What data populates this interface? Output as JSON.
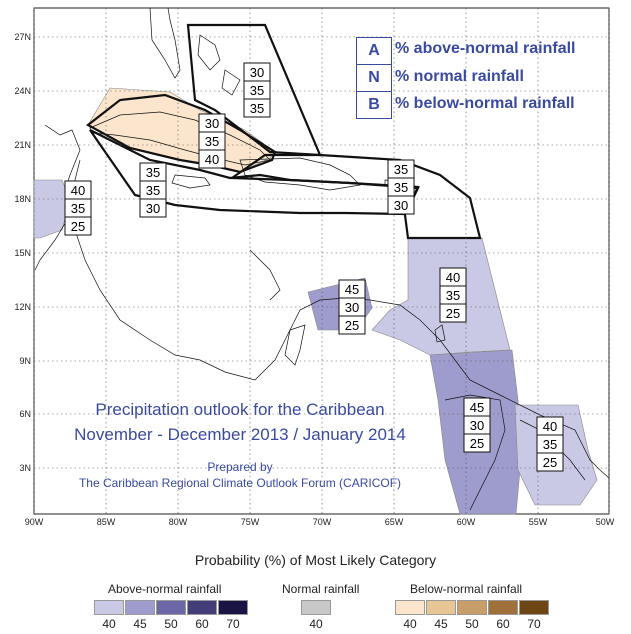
{
  "legend": [
    {
      "letter": "A",
      "label": "% above-normal rainfall"
    },
    {
      "letter": "N",
      "label": "% normal rainfall"
    },
    {
      "letter": "B",
      "label": "% below-normal rainfall"
    }
  ],
  "title_line1": "Precipitation outlook for the Caribbean",
  "title_line2": "November - December 2013 / January 2014",
  "prepared_by": "Prepared by",
  "forum": "The Caribbean Regional Climate Outlook Forum (CARICOF)",
  "lat_ticks": [
    "27N",
    "24N",
    "21N",
    "18N",
    "15N",
    "12N",
    "9N",
    "6N",
    "3N"
  ],
  "lon_ticks": [
    "90W",
    "85W",
    "80W",
    "75W",
    "70W",
    "65W",
    "60W",
    "55W",
    "50W"
  ],
  "probability_boxes": [
    {
      "region": "bahamas",
      "values": [
        "30",
        "35",
        "35"
      ]
    },
    {
      "region": "cuba",
      "values": [
        "30",
        "35",
        "40"
      ]
    },
    {
      "region": "jamaica-caymans",
      "values": [
        "35",
        "35",
        "30"
      ]
    },
    {
      "region": "lesser-antilles-north",
      "values": [
        "35",
        "35",
        "30"
      ]
    },
    {
      "region": "belize-yucatan",
      "values": [
        "40",
        "35",
        "25"
      ]
    },
    {
      "region": "abc-islands",
      "values": [
        "45",
        "30",
        "25"
      ]
    },
    {
      "region": "eastern-caribbean-south",
      "values": [
        "40",
        "35",
        "25"
      ]
    },
    {
      "region": "guyana-suriname",
      "values": [
        "45",
        "30",
        "25"
      ]
    },
    {
      "region": "french-guiana",
      "values": [
        "40",
        "35",
        "25"
      ]
    }
  ],
  "scale": {
    "title": "Probability (%) of Most Likely Category",
    "above_label": "Above-normal rainfall",
    "normal_label": "Normal rainfall",
    "below_label": "Below-normal rainfall",
    "above": [
      {
        "value": "40",
        "color": "#c9c9e6"
      },
      {
        "value": "45",
        "color": "#9e9ccc"
      },
      {
        "value": "50",
        "color": "#6c68a8"
      },
      {
        "value": "60",
        "color": "#433d78"
      },
      {
        "value": "70",
        "color": "#1a1444"
      }
    ],
    "normal": [
      {
        "value": "40",
        "color": "#c8c8c8"
      }
    ],
    "below": [
      {
        "value": "40",
        "color": "#fbe5cc"
      },
      {
        "value": "45",
        "color": "#e8c595"
      },
      {
        "value": "50",
        "color": "#c99d6a"
      },
      {
        "value": "60",
        "color": "#a0703a"
      },
      {
        "value": "70",
        "color": "#6e4515"
      }
    ]
  }
}
